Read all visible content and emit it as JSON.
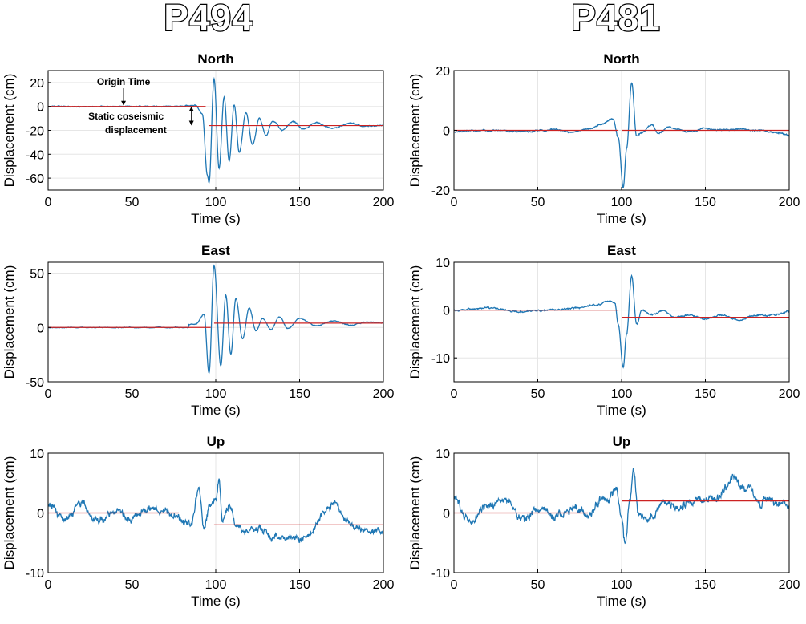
{
  "stations": [
    {
      "name": "P494",
      "column": "left"
    },
    {
      "name": "P481",
      "column": "right"
    }
  ],
  "colors": {
    "signal": "#1f77b4",
    "static": "#cc2222",
    "grid": "#e6e6e6",
    "axis": "#000000"
  },
  "chart_data": [
    {
      "type": "line",
      "station": "P494",
      "component": "North",
      "title": "North",
      "xlabel": "Time (s)",
      "ylabel": "Displacement (cm)",
      "xlim": [
        0,
        200
      ],
      "ylim": [
        -70,
        30
      ],
      "xticks": [
        0,
        50,
        100,
        150,
        200
      ],
      "yticks": [
        20,
        0,
        -20,
        -40,
        -60
      ],
      "grid": true,
      "static": {
        "pre": 0,
        "post": -16,
        "step_time": 96
      },
      "signal": {
        "noise": 0.6,
        "wave_start": 82,
        "peaks": [
          [
            88,
            1
          ],
          [
            92,
            -6
          ],
          [
            95,
            -58
          ],
          [
            96,
            -64
          ],
          [
            99,
            23
          ],
          [
            102,
            -52
          ],
          [
            105,
            8
          ],
          [
            108,
            -45
          ],
          [
            111,
            2
          ],
          [
            114,
            -38
          ],
          [
            118,
            -5
          ],
          [
            122,
            -32
          ],
          [
            126,
            -10
          ],
          [
            130,
            -24
          ],
          [
            134,
            -12
          ],
          [
            140,
            -20
          ],
          [
            146,
            -13
          ],
          [
            152,
            -19
          ],
          [
            160,
            -14
          ],
          [
            170,
            -18
          ],
          [
            180,
            -14
          ],
          [
            190,
            -17
          ],
          [
            200,
            -16
          ]
        ]
      },
      "annotations": [
        {
          "text": "Origin Time",
          "type": "origin-time"
        },
        {
          "text": "Static coseismic",
          "type": "static-line1"
        },
        {
          "text": "displacement",
          "type": "static-line2"
        }
      ]
    },
    {
      "type": "line",
      "station": "P494",
      "component": "East",
      "title": "East",
      "xlabel": "Time (s)",
      "ylabel": "Displacement (cm)",
      "xlim": [
        0,
        200
      ],
      "ylim": [
        -50,
        60
      ],
      "xticks": [
        0,
        50,
        100,
        150,
        200
      ],
      "yticks": [
        50,
        0,
        -50
      ],
      "grid": true,
      "static": {
        "pre": 0,
        "post": 4,
        "step_time": 99
      },
      "signal": {
        "noise": 0.5,
        "wave_start": 84,
        "peaks": [
          [
            88,
            3
          ],
          [
            93,
            12
          ],
          [
            96,
            -42
          ],
          [
            99,
            57
          ],
          [
            103,
            -35
          ],
          [
            106,
            30
          ],
          [
            109,
            -25
          ],
          [
            112,
            27
          ],
          [
            116,
            -10
          ],
          [
            120,
            18
          ],
          [
            124,
            -3
          ],
          [
            128,
            8
          ],
          [
            133,
            -2
          ],
          [
            138,
            10
          ],
          [
            143,
            -1
          ],
          [
            150,
            8
          ],
          [
            160,
            2
          ],
          [
            170,
            6
          ],
          [
            180,
            2
          ],
          [
            190,
            5
          ],
          [
            200,
            4
          ]
        ]
      },
      "annotations": []
    },
    {
      "type": "line",
      "station": "P494",
      "component": "Up",
      "title": "Up",
      "xlabel": "Time (s)",
      "ylabel": "Displacement (cm)",
      "xlim": [
        0,
        200
      ],
      "ylim": [
        -10,
        10
      ],
      "xticks": [
        0,
        50,
        100,
        150,
        200
      ],
      "yticks": [
        10,
        0,
        -10
      ],
      "grid": true,
      "static": {
        "pre": 0,
        "post": -2,
        "step_time": 99
      },
      "signal": {
        "noise": 0.7,
        "wave_start": 0,
        "peaks": [
          [
            0,
            1.5
          ],
          [
            10,
            -1
          ],
          [
            20,
            1.2
          ],
          [
            30,
            -1.5
          ],
          [
            40,
            0.5
          ],
          [
            50,
            -1
          ],
          [
            60,
            1
          ],
          [
            70,
            0.5
          ],
          [
            80,
            -1
          ],
          [
            85,
            -2
          ],
          [
            90,
            3.5
          ],
          [
            93,
            -3
          ],
          [
            96,
            1
          ],
          [
            100,
            2
          ],
          [
            102,
            5
          ],
          [
            104,
            -1.5
          ],
          [
            108,
            1.5
          ],
          [
            112,
            -2
          ],
          [
            118,
            -3
          ],
          [
            125,
            -3
          ],
          [
            135,
            -4
          ],
          [
            145,
            -4
          ],
          [
            155,
            -4
          ],
          [
            165,
            0
          ],
          [
            170,
            1.5
          ],
          [
            178,
            -1.5
          ],
          [
            185,
            -2.5
          ],
          [
            195,
            -3
          ],
          [
            200,
            -3
          ]
        ]
      },
      "annotations": []
    },
    {
      "type": "line",
      "station": "P481",
      "component": "North",
      "title": "North",
      "xlabel": "Time (s)",
      "ylabel": "Displacement (cm)",
      "xlim": [
        0,
        200
      ],
      "ylim": [
        -20,
        20
      ],
      "xticks": [
        0,
        50,
        100,
        150,
        200
      ],
      "yticks": [
        20,
        0,
        -20
      ],
      "grid": true,
      "static": {
        "pre": 0,
        "post": 0,
        "step_time": 100
      },
      "signal": {
        "noise": 0.3,
        "wave_start": 0,
        "peaks": [
          [
            0,
            -0.5
          ],
          [
            20,
            0
          ],
          [
            40,
            -0.3
          ],
          [
            60,
            0.3
          ],
          [
            70,
            -0.5
          ],
          [
            80,
            0.5
          ],
          [
            88,
            2
          ],
          [
            95,
            4
          ],
          [
            98,
            -2
          ],
          [
            101,
            -19
          ],
          [
            103,
            -6
          ],
          [
            106,
            16
          ],
          [
            109,
            -2
          ],
          [
            112,
            -1
          ],
          [
            118,
            2
          ],
          [
            122,
            -1
          ],
          [
            128,
            1
          ],
          [
            134,
            0.5
          ],
          [
            140,
            -0.5
          ],
          [
            150,
            0.5
          ],
          [
            160,
            0
          ],
          [
            170,
            0.3
          ],
          [
            180,
            0
          ],
          [
            190,
            -0.5
          ],
          [
            200,
            -1.5
          ]
        ]
      },
      "annotations": []
    },
    {
      "type": "line",
      "station": "P481",
      "component": "East",
      "title": "East",
      "xlabel": "Time (s)",
      "ylabel": "Displacement (cm)",
      "xlim": [
        0,
        200
      ],
      "ylim": [
        -15,
        10
      ],
      "xticks": [
        0,
        50,
        100,
        150,
        200
      ],
      "yticks": [
        10,
        0,
        -10
      ],
      "grid": true,
      "static": {
        "pre": 0,
        "post": -1.5,
        "step_time": 100
      },
      "signal": {
        "noise": 0.2,
        "wave_start": 0,
        "peaks": [
          [
            0,
            0
          ],
          [
            20,
            0.5
          ],
          [
            40,
            -0.3
          ],
          [
            60,
            0
          ],
          [
            75,
            0.5
          ],
          [
            85,
            1
          ],
          [
            92,
            2
          ],
          [
            96,
            1.5
          ],
          [
            98,
            -3
          ],
          [
            101,
            -12
          ],
          [
            103,
            -5
          ],
          [
            106,
            7
          ],
          [
            109,
            -3
          ],
          [
            112,
            0
          ],
          [
            118,
            -1
          ],
          [
            125,
            0
          ],
          [
            132,
            -1.5
          ],
          [
            140,
            -1
          ],
          [
            150,
            -2
          ],
          [
            160,
            -1
          ],
          [
            170,
            -2
          ],
          [
            180,
            -1
          ],
          [
            190,
            -1
          ],
          [
            200,
            -0.3
          ]
        ]
      },
      "annotations": []
    },
    {
      "type": "line",
      "station": "P481",
      "component": "Up",
      "title": "Up",
      "xlabel": "Time (s)",
      "ylabel": "Displacement (cm)",
      "xlim": [
        0,
        200
      ],
      "ylim": [
        -10,
        10
      ],
      "xticks": [
        0,
        50,
        100,
        150,
        200
      ],
      "yticks": [
        10,
        0,
        -10
      ],
      "grid": true,
      "static": {
        "pre": 0,
        "post": 2,
        "step_time": 100
      },
      "signal": {
        "noise": 0.8,
        "wave_start": 0,
        "peaks": [
          [
            0,
            2
          ],
          [
            10,
            -1.5
          ],
          [
            20,
            1
          ],
          [
            30,
            2.5
          ],
          [
            40,
            -1
          ],
          [
            50,
            0.5
          ],
          [
            60,
            -0.5
          ],
          [
            70,
            1
          ],
          [
            80,
            0
          ],
          [
            90,
            2
          ],
          [
            97,
            4
          ],
          [
            100,
            -1
          ],
          [
            102,
            -5
          ],
          [
            105,
            3
          ],
          [
            107,
            8
          ],
          [
            110,
            0
          ],
          [
            115,
            -1
          ],
          [
            125,
            1.5
          ],
          [
            135,
            1
          ],
          [
            145,
            2
          ],
          [
            155,
            2.5
          ],
          [
            162,
            4
          ],
          [
            168,
            6
          ],
          [
            175,
            4
          ],
          [
            185,
            2
          ],
          [
            195,
            1.5
          ],
          [
            200,
            1.5
          ]
        ]
      },
      "annotations": []
    }
  ]
}
